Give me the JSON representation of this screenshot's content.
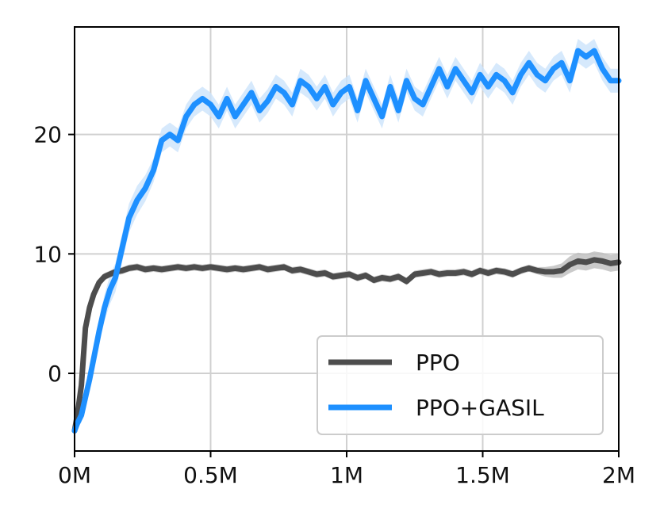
{
  "chart_data": {
    "type": "line",
    "title": "",
    "xlabel": "",
    "ylabel": "",
    "xlim": [
      0,
      2000000
    ],
    "ylim": [
      -6.5,
      29
    ],
    "grid": true,
    "legend_position": "bottom-right",
    "x_ticks": [
      {
        "value": 0,
        "label": "0M"
      },
      {
        "value": 500000,
        "label": "0.5M"
      },
      {
        "value": 1000000,
        "label": "1M"
      },
      {
        "value": 1500000,
        "label": "1.5M"
      },
      {
        "value": 2000000,
        "label": "2M"
      }
    ],
    "y_ticks": [
      {
        "value": 0,
        "label": "0"
      },
      {
        "value": 10,
        "label": "10"
      },
      {
        "value": 20,
        "label": "20"
      }
    ],
    "series": [
      {
        "name": "PPO",
        "color": "#4d4d4d",
        "band_color": "#bdbdbd",
        "x": [
          0,
          10000,
          25000,
          40000,
          55000,
          70000,
          90000,
          110000,
          130000,
          150000,
          175000,
          200000,
          230000,
          260000,
          290000,
          320000,
          350000,
          380000,
          410000,
          440000,
          470000,
          500000,
          530000,
          560000,
          590000,
          620000,
          650000,
          680000,
          710000,
          740000,
          770000,
          800000,
          830000,
          860000,
          890000,
          920000,
          950000,
          980000,
          1010000,
          1040000,
          1070000,
          1100000,
          1130000,
          1160000,
          1190000,
          1220000,
          1250000,
          1280000,
          1310000,
          1340000,
          1370000,
          1400000,
          1430000,
          1460000,
          1490000,
          1520000,
          1550000,
          1580000,
          1610000,
          1640000,
          1670000,
          1700000,
          1730000,
          1760000,
          1790000,
          1820000,
          1850000,
          1880000,
          1910000,
          1940000,
          1970000,
          2000000
        ],
        "values": [
          -4.8,
          -3.5,
          -1.0,
          3.8,
          5.5,
          6.6,
          7.6,
          8.1,
          8.3,
          8.5,
          8.6,
          8.8,
          8.9,
          8.7,
          8.8,
          8.7,
          8.8,
          8.9,
          8.8,
          8.9,
          8.8,
          8.9,
          8.8,
          8.7,
          8.8,
          8.7,
          8.8,
          8.9,
          8.7,
          8.8,
          8.9,
          8.6,
          8.7,
          8.5,
          8.3,
          8.4,
          8.1,
          8.2,
          8.3,
          8.0,
          8.2,
          7.8,
          8.0,
          7.9,
          8.1,
          7.7,
          8.3,
          8.4,
          8.5,
          8.3,
          8.4,
          8.4,
          8.5,
          8.3,
          8.6,
          8.4,
          8.6,
          8.5,
          8.3,
          8.6,
          8.8,
          8.6,
          8.5,
          8.5,
          8.6,
          9.1,
          9.4,
          9.3,
          9.5,
          9.4,
          9.2,
          9.3
        ],
        "spread": [
          0.3,
          0.3,
          0.3,
          0.3,
          0.3,
          0.3,
          0.3,
          0.3,
          0.3,
          0.3,
          0.3,
          0.3,
          0.3,
          0.3,
          0.3,
          0.3,
          0.3,
          0.3,
          0.3,
          0.3,
          0.3,
          0.3,
          0.3,
          0.3,
          0.3,
          0.3,
          0.3,
          0.3,
          0.3,
          0.3,
          0.3,
          0.3,
          0.3,
          0.3,
          0.3,
          0.3,
          0.3,
          0.3,
          0.3,
          0.3,
          0.3,
          0.3,
          0.3,
          0.3,
          0.3,
          0.3,
          0.3,
          0.3,
          0.3,
          0.3,
          0.3,
          0.3,
          0.3,
          0.3,
          0.3,
          0.3,
          0.3,
          0.3,
          0.3,
          0.3,
          0.3,
          0.3,
          0.4,
          0.5,
          0.6,
          0.7,
          0.7,
          0.7,
          0.7,
          0.7,
          0.7,
          0.7
        ]
      },
      {
        "name": "PPO+GASIL",
        "color": "#1e90ff",
        "band_color": "#cce4fb",
        "x": [
          0,
          10000,
          25000,
          40000,
          55000,
          70000,
          90000,
          110000,
          130000,
          150000,
          175000,
          200000,
          230000,
          260000,
          290000,
          320000,
          350000,
          380000,
          410000,
          440000,
          470000,
          500000,
          530000,
          560000,
          590000,
          620000,
          650000,
          680000,
          710000,
          740000,
          770000,
          800000,
          830000,
          860000,
          890000,
          920000,
          950000,
          980000,
          1010000,
          1040000,
          1070000,
          1100000,
          1130000,
          1160000,
          1190000,
          1220000,
          1250000,
          1280000,
          1310000,
          1340000,
          1370000,
          1400000,
          1430000,
          1460000,
          1490000,
          1520000,
          1550000,
          1580000,
          1610000,
          1640000,
          1670000,
          1700000,
          1730000,
          1760000,
          1790000,
          1820000,
          1850000,
          1880000,
          1910000,
          1940000,
          1970000,
          2000000
        ],
        "values": [
          -4.8,
          -4.2,
          -3.5,
          -2.0,
          -0.5,
          1.2,
          3.5,
          5.5,
          7.0,
          8.0,
          10.5,
          13.0,
          14.5,
          15.5,
          17.0,
          19.5,
          20.0,
          19.5,
          21.5,
          22.5,
          23.0,
          22.5,
          21.5,
          23.0,
          21.5,
          22.5,
          23.5,
          22.0,
          22.8,
          24.0,
          23.5,
          22.5,
          24.5,
          24.0,
          23.0,
          24.0,
          22.5,
          23.5,
          24.0,
          22.0,
          24.5,
          23.0,
          21.5,
          24.0,
          22.0,
          24.5,
          23.0,
          22.5,
          24.0,
          25.5,
          24.0,
          25.5,
          24.5,
          23.5,
          25.0,
          24.0,
          25.0,
          24.5,
          23.5,
          25.0,
          26.0,
          25.0,
          24.5,
          25.5,
          26.0,
          24.5,
          27.0,
          26.5,
          27.0,
          25.5,
          24.5,
          24.5
        ],
        "spread": [
          0.4,
          0.5,
          0.6,
          0.7,
          0.8,
          0.9,
          1.0,
          1.1,
          1.2,
          1.2,
          1.2,
          1.2,
          1.2,
          1.1,
          1.0,
          1.0,
          1.0,
          1.0,
          1.0,
          1.0,
          1.0,
          1.0,
          1.0,
          1.0,
          1.0,
          1.0,
          1.0,
          1.0,
          1.0,
          1.0,
          1.0,
          1.0,
          1.0,
          1.0,
          1.0,
          1.0,
          1.0,
          1.0,
          1.0,
          1.0,
          1.0,
          1.0,
          1.0,
          1.0,
          1.0,
          1.0,
          1.0,
          1.0,
          1.0,
          1.0,
          1.0,
          1.0,
          1.0,
          1.0,
          1.0,
          1.0,
          1.0,
          1.0,
          1.0,
          1.0,
          1.0,
          1.0,
          1.0,
          1.0,
          1.0,
          1.0,
          1.0,
          1.0,
          1.0,
          1.0,
          1.0,
          1.0
        ]
      }
    ]
  }
}
